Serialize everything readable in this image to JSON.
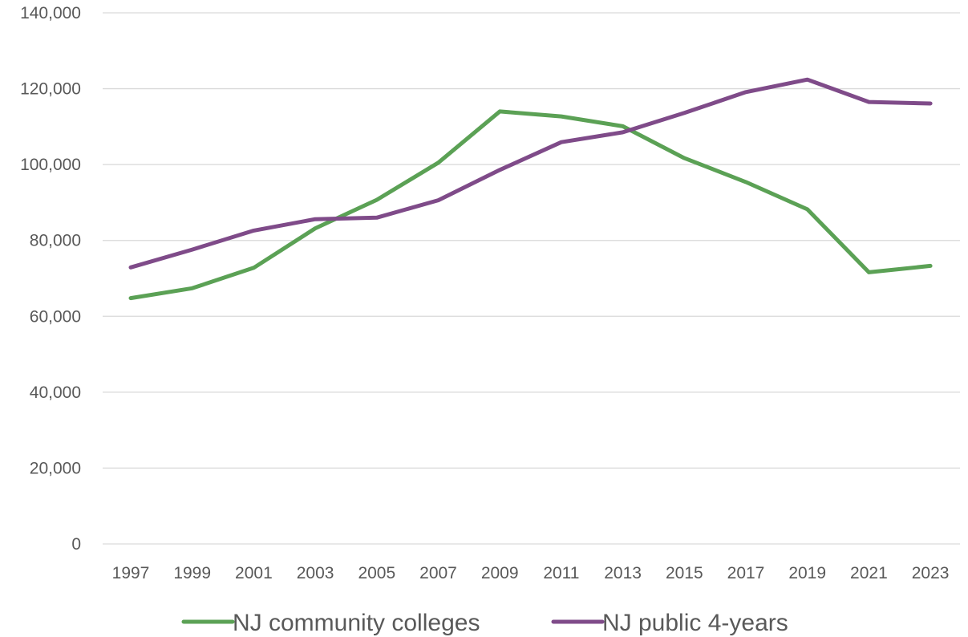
{
  "chart_data": {
    "type": "line",
    "title": "",
    "xlabel": "",
    "ylabel": "",
    "x": [
      "1997",
      "1999",
      "2001",
      "2003",
      "2005",
      "2007",
      "2009",
      "2011",
      "2013",
      "2015",
      "2017",
      "2019",
      "2021",
      "2023"
    ],
    "y_ticks": [
      "0",
      "20,000",
      "40,000",
      "60,000",
      "80,000",
      "100,000",
      "120,000",
      "140,000"
    ],
    "ylim": [
      0,
      140000
    ],
    "grid": true,
    "legend_position": "bottom",
    "series": [
      {
        "name": "NJ community colleges",
        "color": "#5BA155",
        "values": [
          64800,
          67400,
          72800,
          83200,
          90700,
          100500,
          114000,
          112700,
          110100,
          101700,
          95400,
          88200,
          71600,
          73300
        ]
      },
      {
        "name": "NJ public 4-years",
        "color": "#7F4B89",
        "values": [
          72900,
          77600,
          82600,
          85600,
          86000,
          90600,
          98600,
          105900,
          108500,
          113600,
          119100,
          122400,
          116500,
          116100
        ]
      }
    ]
  }
}
